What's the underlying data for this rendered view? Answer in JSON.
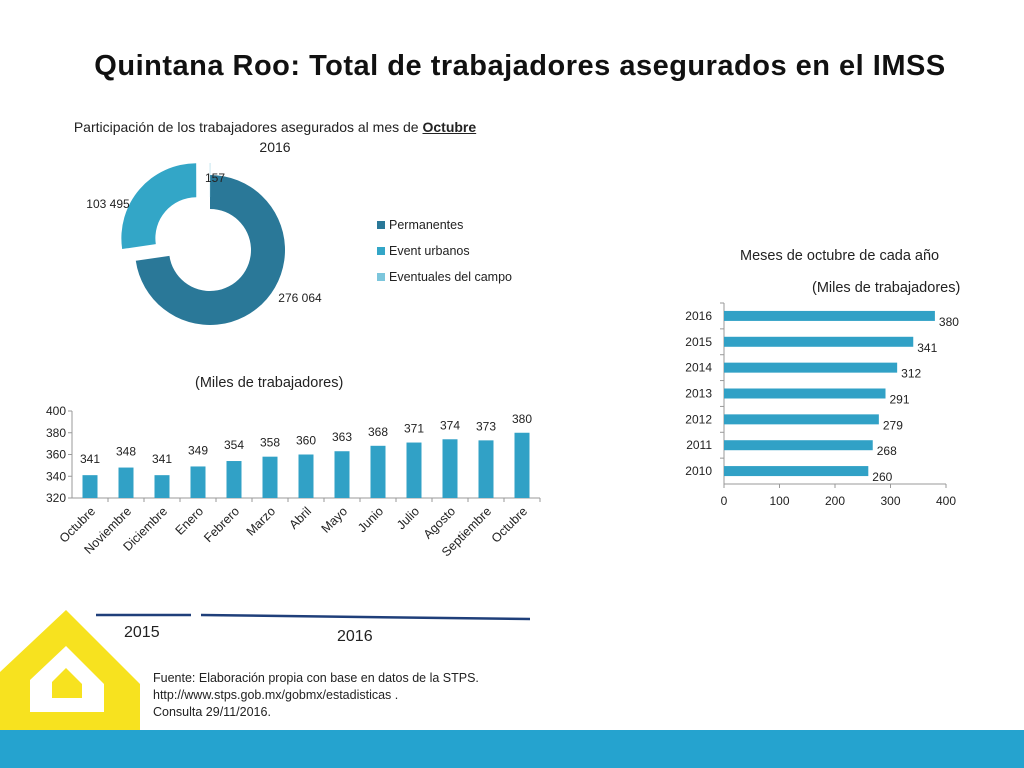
{
  "title": "Quintana Roo: Total de trabajadores asegurados en el IMSS",
  "colors": {
    "dark_teal": "#2a7898",
    "light_teal": "#33a6c7",
    "pale_teal": "#7cc6dc",
    "bar": "#31a1c6",
    "band": "#25a3cf",
    "logo": "#f7e21f"
  },
  "chart_data": [
    {
      "type": "pie",
      "style": "donut",
      "title_prefix": "Participación  de los trabajadores asegurados al mes de",
      "title_month": "Octubre",
      "title_year": "2016",
      "series": [
        {
          "name": "Permanentes",
          "value": 276064,
          "label": "276 064"
        },
        {
          "name": "Event urbanos",
          "value": 103495,
          "label": "103 495"
        },
        {
          "name": "Eventuales del campo",
          "value": 157,
          "label": "157"
        }
      ],
      "legend": "right"
    },
    {
      "type": "bar",
      "title": "(Miles de trabajadores)",
      "categories": [
        "Octubre",
        "Noviembre",
        "Diciembre",
        "Enero",
        "Febrero",
        "Marzo",
        "Abril",
        "Mayo",
        "Junio",
        "Julio",
        "Agosto",
        "Septiembre",
        "Octubre"
      ],
      "values": [
        341,
        348,
        341,
        349,
        354,
        358,
        360,
        363,
        368,
        371,
        374,
        373,
        380
      ],
      "ylim": [
        320,
        400
      ],
      "yticks": [
        "320",
        "340",
        "360",
        "380",
        "400"
      ],
      "year_groups": [
        "2015",
        "2016"
      ]
    },
    {
      "type": "bar",
      "orientation": "horizontal",
      "title": "Meses de octubre de cada año",
      "subtitle": "(Miles de trabajadores)",
      "categories": [
        "2016",
        "2015",
        "2014",
        "2013",
        "2012",
        "2011",
        "2010"
      ],
      "values": [
        380,
        341,
        312,
        291,
        279,
        268,
        260
      ],
      "xlim": [
        0,
        400
      ],
      "xticks": [
        "0",
        "100",
        "200",
        "300",
        "400"
      ]
    }
  ],
  "source": {
    "line1": "Fuente: Elaboración propia con base en  datos de la STPS.",
    "line2": " http://www.stps.gob.mx/gobmx/estadisticas .",
    "line3": "Consulta 29/11/2016."
  }
}
